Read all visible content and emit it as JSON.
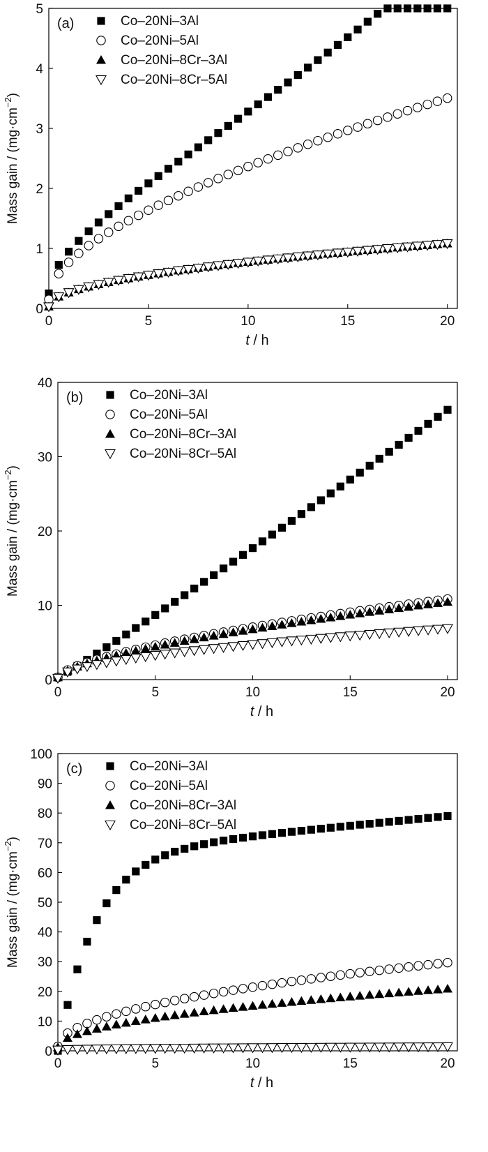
{
  "chart_data": [
    {
      "type": "scatter",
      "panel_label": "(a)",
      "xlabel_italic": "t",
      "xlabel_rest": " / h",
      "ylabel_main": "Mass gain / (mg·cm",
      "ylabel_sup": "−2",
      "ylabel_close": ")",
      "xlim": [
        0,
        20.5
      ],
      "ylim": [
        0,
        5
      ],
      "xticks": [
        0,
        5,
        10,
        15,
        20
      ],
      "yticks": [
        0,
        1,
        2,
        3,
        4,
        5
      ],
      "legend_placement": "top-left",
      "series": [
        {
          "name": "Co–20Ni–3Al",
          "marker": "square-filled",
          "f": "a",
          "a": 0.16,
          "b": 1.052,
          "c": 0.9,
          "p": 0.5
        },
        {
          "name": "Co–20Ni–5Al",
          "marker": "circle-open",
          "f": "a",
          "a": 0.36,
          "b": 0.55,
          "c": 0.62,
          "p": 0.6
        },
        {
          "name": "Co–20Ni–8Cr–3Al",
          "marker": "triangle-filled",
          "f": "a",
          "a": 0.0,
          "b": 0.235,
          "c": 0.0,
          "p": 0.5
        },
        {
          "name": "Co–20Ni–8Cr–5Al",
          "marker": "triangle-down-open",
          "f": "a",
          "a": 0.0,
          "b": 0.245,
          "c": 0.0,
          "p": 0.5
        }
      ]
    },
    {
      "type": "scatter",
      "panel_label": "(b)",
      "xlabel_italic": "t",
      "xlabel_rest": " / h",
      "ylabel_main": "Mass gain / (mg·cm",
      "ylabel_sup": "−2",
      "ylabel_close": ")",
      "xlim": [
        0,
        20.5
      ],
      "ylim": [
        0,
        40
      ],
      "xticks": [
        0,
        5,
        10,
        15,
        20
      ],
      "yticks": [
        0,
        10,
        20,
        30,
        40
      ],
      "legend_placement": "top-left",
      "series": [
        {
          "name": "Co–20Ni–3Al",
          "marker": "square-filled",
          "f": "a",
          "a": 0.2,
          "b": 1.6,
          "c": 0.0,
          "p": 1.08
        },
        {
          "name": "Co–20Ni–5Al",
          "marker": "circle-open",
          "f": "a",
          "a": 0.3,
          "b": 1.55,
          "c": 0.0,
          "p": 0.64
        },
        {
          "name": "Co–20Ni–8Cr–3Al",
          "marker": "triangle-filled",
          "f": "a",
          "a": 0.3,
          "b": 1.45,
          "c": 0.0,
          "p": 0.65
        },
        {
          "name": "Co–20Ni–8Cr–5Al",
          "marker": "triangle-down-open",
          "f": "a",
          "a": 0.2,
          "b": 1.25,
          "c": 0.0,
          "p": 0.56
        }
      ]
    },
    {
      "type": "scatter",
      "panel_label": "(c)",
      "xlabel_italic": "t",
      "xlabel_rest": " / h",
      "ylabel_main": "Mass gain / (mg·cm",
      "ylabel_sup": "−2",
      "ylabel_close": ")",
      "xlim": [
        0,
        20.5
      ],
      "ylim": [
        0,
        100
      ],
      "xticks": [
        0,
        5,
        10,
        15,
        20
      ],
      "yticks": [
        0,
        10,
        20,
        30,
        40,
        50,
        60,
        70,
        80,
        90,
        100
      ],
      "legend_placement": "top-left",
      "series": [
        {
          "name": "Co–20Ni–3Al",
          "marker": "square-filled",
          "f": "b",
          "a": 66.0,
          "b": 0.65,
          "c": 0.52,
          "p": 0.0
        },
        {
          "name": "Co–20Ni–5Al",
          "marker": "circle-open",
          "f": "a",
          "a": 0.0,
          "b": 6.7,
          "c": 0.0,
          "p": 0.5
        },
        {
          "name": "Co–20Ni–8Cr–3Al",
          "marker": "triangle-filled",
          "f": "a",
          "a": 0.0,
          "b": 4.7,
          "c": 0.0,
          "p": 0.5
        },
        {
          "name": "Co–20Ni–8Cr–5Al",
          "marker": "triangle-down-open",
          "f": "a",
          "a": 0.2,
          "b": 0.6,
          "c": 0.0,
          "p": 0.3
        }
      ]
    }
  ]
}
